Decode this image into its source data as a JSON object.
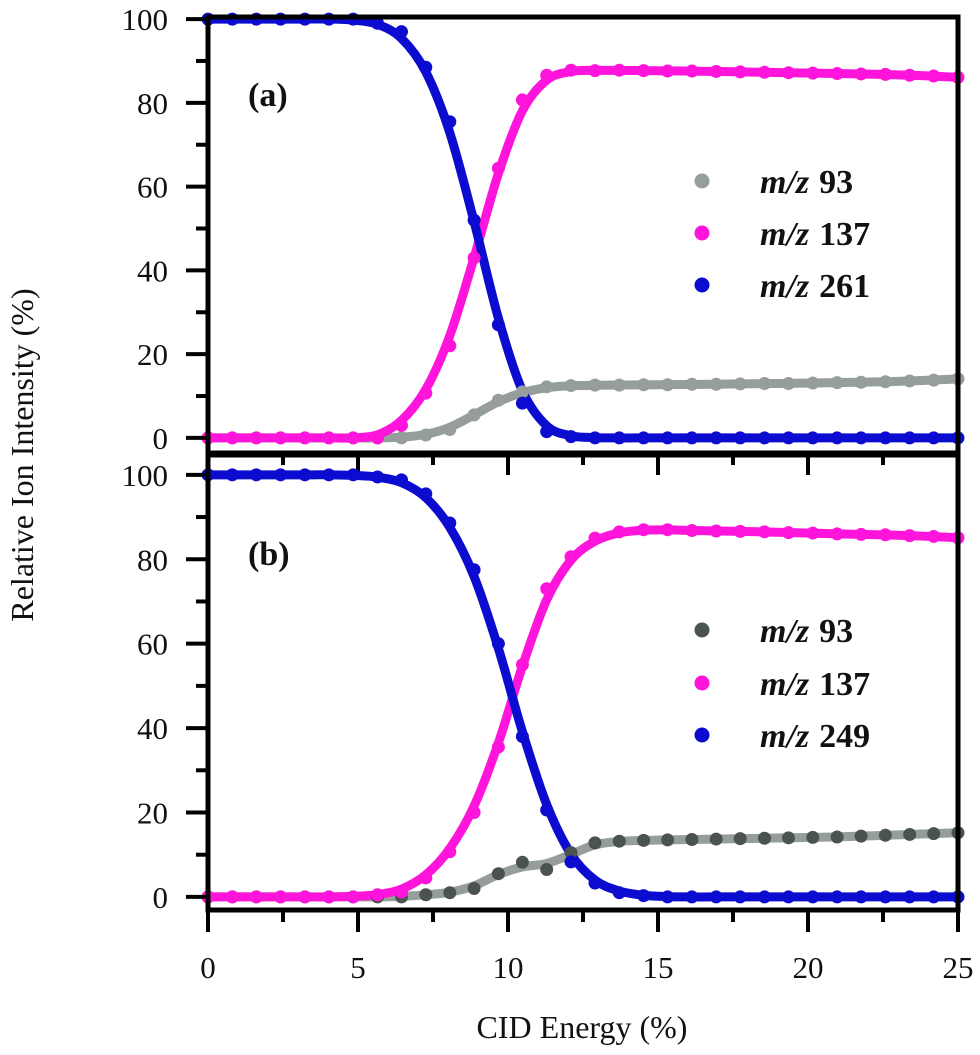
{
  "chart_data": [
    {
      "type": "line",
      "panel_label": "(a)",
      "xlabel": "CID Energy (%)",
      "ylabel": "Relative Ion Intensity (%)",
      "xlim": [
        0,
        25
      ],
      "ylim": [
        -3.6,
        100.5
      ],
      "x_ticks": [
        "0",
        "5",
        "10",
        "15",
        "20",
        "25"
      ],
      "y_ticks": [
        "0",
        "20",
        "40",
        "60",
        "80",
        "100"
      ],
      "grid": false,
      "legend_position": "right-middle",
      "x": [
        0,
        0.81,
        1.61,
        2.42,
        3.23,
        4.03,
        4.84,
        5.65,
        6.45,
        7.26,
        8.06,
        8.87,
        9.68,
        10.48,
        11.29,
        12.1,
        12.9,
        13.71,
        14.52,
        15.32,
        16.13,
        16.94,
        17.74,
        18.55,
        19.35,
        20.16,
        20.97,
        21.77,
        22.58,
        23.39,
        24.19,
        25
      ],
      "series": [
        {
          "name": "m/z 93",
          "name_italic": "m/z",
          "name_number": "93",
          "color": "#959e9b",
          "line_color": "#959e9b",
          "values": [
            0,
            0,
            0,
            0,
            0,
            0,
            0,
            0,
            0,
            0.7,
            2,
            5.5,
            9,
            11,
            12.2,
            12.5,
            12.6,
            12.6,
            12.7,
            12.7,
            12.8,
            12.8,
            12.9,
            13,
            13,
            13.1,
            13.2,
            13.3,
            13.4,
            13.6,
            13.8,
            14.1
          ]
        },
        {
          "name": "m/z 137",
          "name_italic": "m/z",
          "name_number": "137",
          "color": "#ff14dc",
          "line_color": "#ff14dc",
          "values": [
            0,
            0,
            0,
            0,
            0,
            0,
            0,
            0,
            3,
            10.7,
            22,
            43,
            64.4,
            80.7,
            86.6,
            87.8,
            87.7,
            87.8,
            87.7,
            87.6,
            87.6,
            87.5,
            87.4,
            87.3,
            87.2,
            87.1,
            87,
            86.9,
            86.8,
            86.6,
            86.4,
            86.1
          ]
        },
        {
          "name": "m/z 261",
          "name_italic": "m/z",
          "name_number": "261",
          "color": "#0c0cd0",
          "line_color": "#0c0cd0",
          "values": [
            100,
            100,
            100,
            100,
            100,
            100,
            100,
            99,
            97,
            88.5,
            75.5,
            52,
            27,
            8.3,
            1.5,
            0.3,
            0,
            0,
            0,
            0,
            0,
            0,
            0,
            0,
            0,
            0,
            0,
            0,
            0,
            0,
            0,
            0
          ]
        }
      ]
    },
    {
      "type": "line",
      "panel_label": "(b)",
      "xlabel": "CID Energy (%)",
      "ylabel": "Relative Ion Intensity (%)",
      "xlim": [
        0,
        25
      ],
      "ylim": [
        -3.1,
        104.7
      ],
      "x_ticks": [
        "0",
        "5",
        "10",
        "15",
        "20",
        "25"
      ],
      "y_ticks": [
        "0",
        "20",
        "40",
        "60",
        "80",
        "100"
      ],
      "grid": false,
      "legend_position": "right-middle",
      "x": [
        0,
        0.81,
        1.61,
        2.42,
        3.23,
        4.03,
        4.84,
        5.65,
        6.45,
        7.26,
        8.06,
        8.87,
        9.68,
        10.48,
        11.29,
        12.1,
        12.9,
        13.71,
        14.52,
        15.32,
        16.13,
        16.94,
        17.74,
        18.55,
        19.35,
        20.16,
        20.97,
        21.77,
        22.58,
        23.39,
        24.19,
        25
      ],
      "series": [
        {
          "name": "m/z 93",
          "name_italic": "m/z",
          "name_number": "93",
          "color": "#4b5351",
          "line_color": "#959e9b",
          "values": [
            0,
            0,
            0,
            0,
            0,
            0,
            0,
            0,
            0,
            0.5,
            1,
            2,
            5.5,
            8.2,
            6.5,
            10.5,
            12.8,
            13.2,
            13.4,
            13.5,
            13.6,
            13.7,
            13.8,
            13.9,
            14,
            14.1,
            14.2,
            14.4,
            14.6,
            14.8,
            15,
            15.2
          ]
        },
        {
          "name": "m/z 137",
          "name_italic": "m/z",
          "name_number": "137",
          "color": "#ff14dc",
          "line_color": "#ff14dc",
          "values": [
            0,
            0,
            0,
            0,
            0,
            0,
            0,
            0.5,
            1.2,
            4.5,
            10.7,
            20,
            35.5,
            55,
            73,
            80.6,
            85,
            86.5,
            87,
            87,
            86.8,
            86.7,
            86.6,
            86.5,
            86.3,
            86.2,
            86,
            85.9,
            85.8,
            85.6,
            85.4,
            85.1
          ]
        },
        {
          "name": "m/z 249",
          "name_italic": "m/z",
          "name_number": "249",
          "color": "#0c0cd0",
          "line_color": "#0c0cd0",
          "values": [
            100,
            100,
            100,
            100,
            100,
            100,
            100,
            99.5,
            98.8,
            95.5,
            88.6,
            77.5,
            60,
            38,
            20.6,
            8.3,
            3.3,
            1,
            0.3,
            0,
            0,
            0,
            0,
            0,
            0,
            0,
            0,
            0,
            0,
            0,
            0,
            0
          ]
        }
      ]
    }
  ]
}
